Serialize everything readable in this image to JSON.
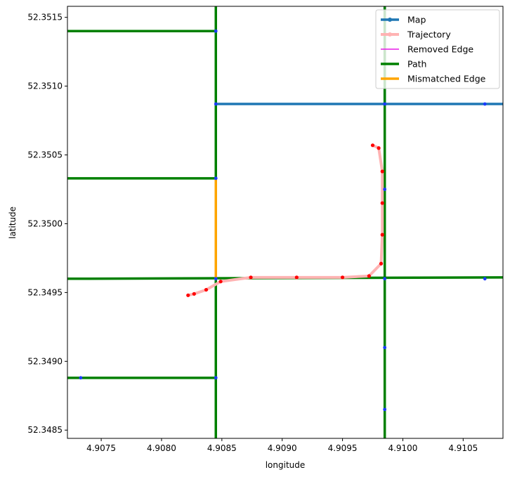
{
  "chart_data": {
    "type": "line",
    "xlabel": "longitude",
    "ylabel": "latitude",
    "xlim": [
      4.90722,
      4.91083
    ],
    "ylim": [
      52.34844,
      52.35158
    ],
    "xticks": [
      "4.9075",
      "4.9080",
      "4.9085",
      "4.9090",
      "4.9095",
      "4.9100",
      "4.9105"
    ],
    "yticks": [
      "52.3485",
      "52.3490",
      "52.3495",
      "52.3500",
      "52.3505",
      "52.3510",
      "52.3515"
    ],
    "legend": {
      "position": "top-right",
      "entries": [
        {
          "label": "Map",
          "color": "#1f77b4",
          "style": "line-marker"
        },
        {
          "label": "Trajectory",
          "color": "#ffb3b3",
          "style": "line-marker"
        },
        {
          "label": "Removed Edge",
          "color": "#e81ae8",
          "style": "thin-line"
        },
        {
          "label": "Path",
          "color": "#008000",
          "style": "thick-line"
        },
        {
          "label": "Mismatched Edge",
          "color": "#ffa500",
          "style": "thick-line"
        }
      ]
    },
    "map_edges": [
      {
        "from": [
          4.90845,
          52.35087
        ],
        "to": [
          4.91083,
          52.35087
        ]
      },
      {
        "from": [
          4.90985,
          52.35087
        ],
        "to": [
          4.90985,
          52.35158
        ]
      }
    ],
    "map_nodes": [
      [
        4.90845,
        52.3514
      ],
      [
        4.90845,
        52.35087
      ],
      [
        4.90985,
        52.35087
      ],
      [
        4.91068,
        52.35087
      ],
      [
        4.90845,
        52.35033
      ],
      [
        4.90985,
        52.35025
      ],
      [
        4.90845,
        52.3496
      ],
      [
        4.90985,
        52.3496
      ],
      [
        4.91068,
        52.3496
      ],
      [
        4.90985,
        52.3491
      ],
      [
        4.90733,
        52.34888
      ],
      [
        4.90845,
        52.34888
      ],
      [
        4.90985,
        52.34865
      ]
    ],
    "path_edges": [
      {
        "from": [
          4.90722,
          52.3514
        ],
        "to": [
          4.90845,
          52.3514
        ]
      },
      {
        "from": [
          4.90722,
          52.35033
        ],
        "to": [
          4.90845,
          52.35033
        ]
      },
      {
        "from": [
          4.90722,
          52.3496
        ],
        "to": [
          4.91083,
          52.34961
        ]
      },
      {
        "from": [
          4.90722,
          52.34888
        ],
        "to": [
          4.90845,
          52.34888
        ]
      },
      {
        "from": [
          4.90845,
          52.34844
        ],
        "to": [
          4.90845,
          52.35158
        ]
      },
      {
        "from": [
          4.90985,
          52.34844
        ],
        "to": [
          4.90985,
          52.35158
        ]
      }
    ],
    "mismatched_edges": [
      {
        "from": [
          4.90845,
          52.3496
        ],
        "to": [
          4.90845,
          52.35033
        ]
      }
    ],
    "removed_edges": [],
    "trajectory": [
      [
        4.90822,
        52.34948
      ],
      [
        4.90827,
        52.34949
      ],
      [
        4.90837,
        52.34952
      ],
      [
        4.90849,
        52.34958
      ],
      [
        4.90874,
        52.34961
      ],
      [
        4.90912,
        52.34961
      ],
      [
        4.9095,
        52.34961
      ],
      [
        4.90972,
        52.34962
      ],
      [
        4.90982,
        52.34971
      ],
      [
        4.90983,
        52.34992
      ],
      [
        4.90983,
        52.35015
      ],
      [
        4.90983,
        52.35038
      ],
      [
        4.9098,
        52.35055
      ],
      [
        4.90975,
        52.35057
      ]
    ]
  }
}
